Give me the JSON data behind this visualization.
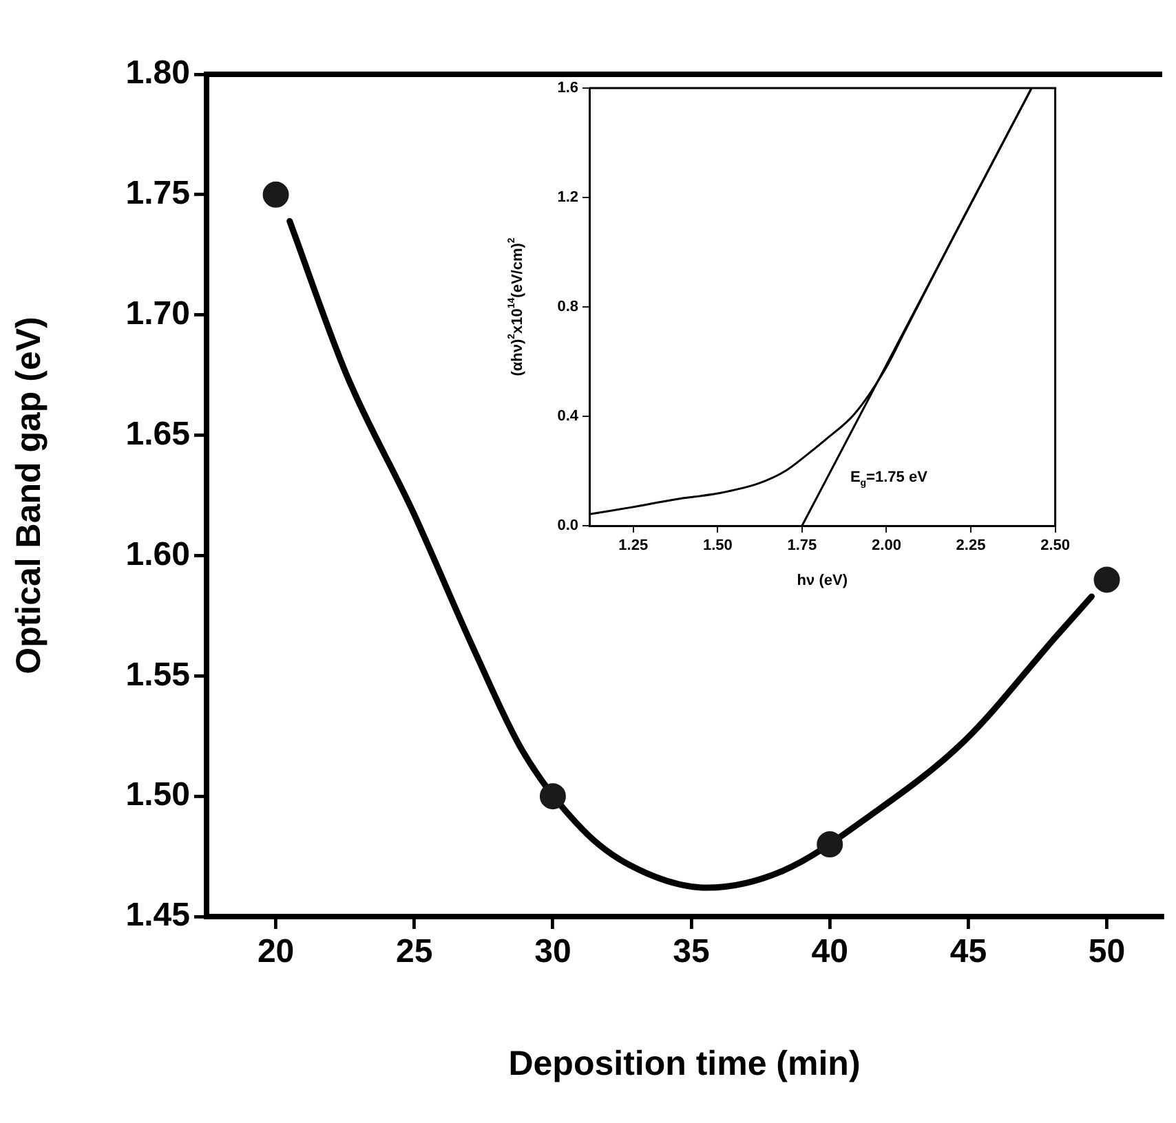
{
  "chart_data": [
    {
      "type": "scatter",
      "xlabel": "Deposition time (min)",
      "ylabel": "Optical Band gap (eV)",
      "xlim": [
        17.5,
        52
      ],
      "ylim": [
        1.45,
        1.8
      ],
      "xticks": [
        20,
        25,
        30,
        35,
        40,
        45,
        50
      ],
      "yticks": [
        1.45,
        {
          "value": 1.5,
          "label": "1.50"
        },
        1.55,
        {
          "value": 1.6,
          "label": "1.60"
        },
        1.65,
        {
          "value": 1.7,
          "label": "1.70"
        },
        1.75,
        {
          "value": 1.8,
          "label": "1.80"
        }
      ],
      "series": [
        {
          "marker": "circle",
          "color": "#1a1a1a",
          "x": [
            20,
            30,
            40,
            50
          ],
          "values": [
            1.75,
            1.5,
            1.48,
            1.59
          ]
        },
        {
          "type": "line",
          "marker": "none",
          "color": "#000000",
          "x": [
            20.5,
            22.56,
            24.96,
            27.15,
            28.9,
            31.09,
            32.84,
            35.57,
            38.3,
            41.58,
            44.86,
            48.14,
            49.45
          ],
          "values": [
            1.739,
            1.675,
            1.618,
            1.561,
            1.519,
            1.486,
            1.471,
            1.462,
            1.469,
            1.493,
            1.523,
            1.566,
            1.583
          ]
        }
      ]
    },
    {
      "type": "line",
      "xlabel": "hν (eV)",
      "ylabel": "(αhν)$^{2}$x10$^{14}$(eV/cm)$^{2}$",
      "annotations": [
        "E$_{g}$=1.75 eV"
      ],
      "xlim": [
        1.12,
        2.5
      ],
      "ylim": [
        0,
        1.6
      ],
      "xticks": [
        1.25,
        {
          "value": 1.5,
          "label": "1.50"
        },
        1.75,
        {
          "value": 2,
          "label": "2.00"
        },
        2.25,
        {
          "value": 2.5,
          "label": "2.50"
        }
      ],
      "yticks": [
        {
          "value": 0,
          "label": "0.0"
        },
        0.4,
        0.8,
        1.2,
        1.6
      ],
      "series": [
        {
          "color": "#000000",
          "x": [
            1.12,
            1.243,
            1.378,
            1.5,
            1.622,
            1.703,
            1.757,
            1.824,
            1.905,
            2.0,
            2.05,
            2.2,
            2.43
          ],
          "values": [
            0.042,
            0.067,
            0.097,
            0.118,
            0.155,
            0.202,
            0.252,
            0.319,
            0.408,
            0.58,
            0.7,
            1.06,
            1.6
          ]
        },
        {
          "color": "#000000",
          "x": [
            1.75,
            2.43
          ],
          "values": [
            0,
            1.6
          ]
        }
      ]
    }
  ]
}
